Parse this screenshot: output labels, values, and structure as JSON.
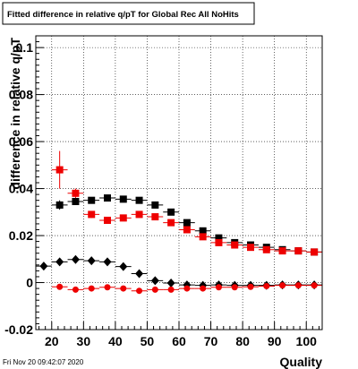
{
  "chart_data": {
    "type": "scatter",
    "title": "Fitted difference in relative q/pT for Global Rec All NoHits",
    "xlabel": "Quality",
    "ylabel": "difference in relative q/pT",
    "xlim": [
      15,
      105
    ],
    "ylim": [
      -0.02,
      0.105
    ],
    "x_ticks": [
      20,
      30,
      40,
      50,
      60,
      70,
      80,
      90,
      100
    ],
    "y_ticks": [
      -0.02,
      0,
      0.02,
      0.04,
      0.06,
      0.08,
      0.1
    ],
    "y_tick_labels": [
      "-0.02",
      "0",
      "0.02",
      "0.04",
      "0.06",
      "0.08",
      "0.1"
    ],
    "x_tick_labels": [
      "20",
      "30",
      "40",
      "50",
      "60",
      "70",
      "80",
      "90",
      "100"
    ],
    "grid": true,
    "timestamp": "Fri Nov 20 09:42:07 2020",
    "series": [
      {
        "marker": "square",
        "color": "#000000",
        "x": [
          22.5,
          27.5,
          32.5,
          37.5,
          42.5,
          47.5,
          52.5,
          57.5,
          62.5,
          67.5,
          72.5,
          77.5,
          82.5,
          87.5,
          92.5,
          97.5,
          102.5
        ],
        "y": [
          0.033,
          0.0345,
          0.035,
          0.036,
          0.0355,
          0.035,
          0.033,
          0.03,
          0.0255,
          0.022,
          0.019,
          0.017,
          0.016,
          0.015,
          0.014,
          0.0135,
          0.013
        ],
        "yerr": [
          0.002,
          0.0015,
          0.001,
          0.001,
          0.001,
          0.001,
          0.001,
          0.001,
          0.001,
          0.001,
          0.0008,
          0.0008,
          0.0008,
          0.0008,
          0.0008,
          0.0008,
          0.0008
        ]
      },
      {
        "marker": "square",
        "color": "#ee0000",
        "x": [
          22.5,
          27.5,
          32.5,
          37.5,
          42.5,
          47.5,
          52.5,
          57.5,
          62.5,
          67.5,
          72.5,
          77.5,
          82.5,
          87.5,
          92.5,
          97.5,
          102.5
        ],
        "y": [
          0.048,
          0.038,
          0.029,
          0.0265,
          0.0275,
          0.029,
          0.028,
          0.0255,
          0.0225,
          0.0195,
          0.017,
          0.016,
          0.015,
          0.014,
          0.0135,
          0.0135,
          0.013
        ],
        "yerr": [
          0.008,
          0.002,
          0.0015,
          0.001,
          0.001,
          0.001,
          0.001,
          0.001,
          0.001,
          0.001,
          0.001,
          0.0008,
          0.0008,
          0.0008,
          0.0008,
          0.0008,
          0.0008
        ]
      },
      {
        "marker": "diamond",
        "color": "#000000",
        "x": [
          17.5,
          22.5,
          27.5,
          32.5,
          37.5,
          42.5,
          47.5,
          52.5,
          57.5,
          62.5,
          67.5,
          72.5,
          77.5,
          82.5,
          87.5,
          92.5,
          97.5,
          102.5
        ],
        "y": [
          0.007,
          0.0088,
          0.0098,
          0.0093,
          0.0088,
          0.0068,
          0.0038,
          0.0008,
          -0.0002,
          -0.001,
          -0.0012,
          -0.001,
          -0.0012,
          -0.0012,
          -0.0012,
          -0.001,
          -0.001,
          -0.001
        ],
        "yerr": [
          0.0007,
          0.0006,
          0.0005,
          0.0005,
          0.0005,
          0.0005,
          0.0004,
          0.0004,
          0.0004,
          0.0004,
          0.0004,
          0.0004,
          0.0004,
          0.0004,
          0.0004,
          0.0004,
          0.0004,
          0.0004
        ]
      },
      {
        "marker": "circle",
        "color": "#ee0000",
        "x": [
          22.5,
          27.5,
          32.5,
          37.5,
          42.5,
          47.5,
          52.5,
          57.5,
          62.5,
          67.5,
          72.5,
          77.5,
          82.5,
          87.5,
          92.5,
          97.5,
          102.5
        ],
        "y": [
          -0.0018,
          -0.003,
          -0.0025,
          -0.002,
          -0.0025,
          -0.0035,
          -0.003,
          -0.003,
          -0.0025,
          -0.0025,
          -0.002,
          -0.002,
          -0.0018,
          -0.0015,
          -0.0012,
          -0.0012,
          -0.0012
        ],
        "yerr": [
          0.0006,
          0.0005,
          0.0005,
          0.0004,
          0.0004,
          0.0004,
          0.0004,
          0.0004,
          0.0004,
          0.0004,
          0.0004,
          0.0004,
          0.0004,
          0.0004,
          0.0004,
          0.0004,
          0.0004
        ]
      }
    ]
  }
}
